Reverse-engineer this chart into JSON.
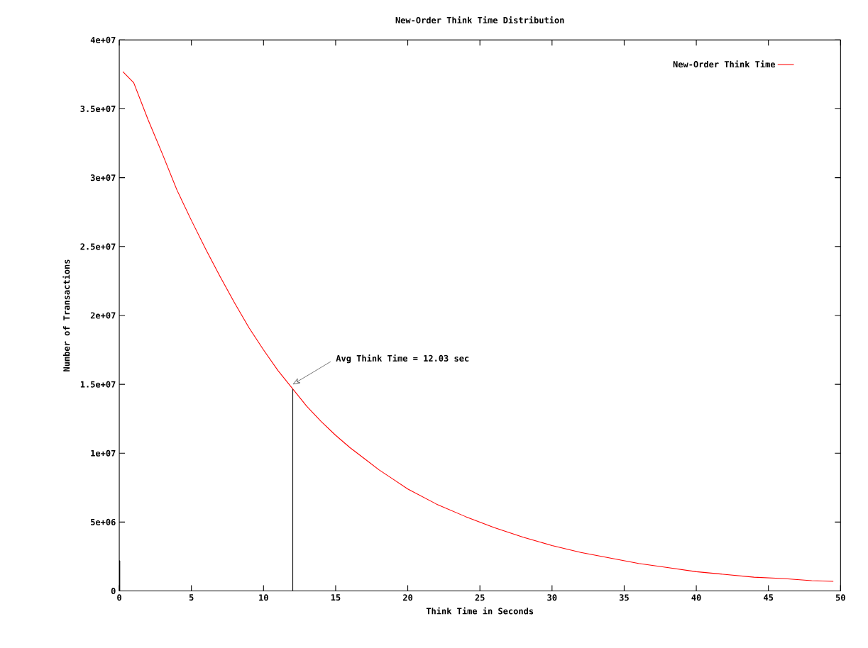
{
  "chart_data": {
    "type": "line",
    "title": "New-Order Think Time Distribution",
    "xlabel": "Think Time in Seconds",
    "ylabel": "Number of Transactions",
    "xlim": [
      0,
      50
    ],
    "ylim": [
      0,
      40000000
    ],
    "xticks": [
      0,
      5,
      10,
      15,
      20,
      25,
      30,
      35,
      40,
      45,
      50
    ],
    "yticks": [
      {
        "value": 0,
        "label": "0"
      },
      {
        "value": 5000000,
        "label": "5e+06"
      },
      {
        "value": 10000000,
        "label": "1e+07"
      },
      {
        "value": 15000000,
        "label": "1.5e+07"
      },
      {
        "value": 20000000,
        "label": "2e+07"
      },
      {
        "value": 25000000,
        "label": "2.5e+07"
      },
      {
        "value": 30000000,
        "label": "3e+07"
      },
      {
        "value": 35000000,
        "label": "3.5e+07"
      },
      {
        "value": 40000000,
        "label": "4e+07"
      }
    ],
    "grid": false,
    "legend": "top right",
    "marker": "none",
    "line_style": "solid",
    "series": [
      {
        "name": "New-Order Think Time",
        "color": "#ff0000",
        "x": [
          0.25,
          1,
          2,
          3,
          4,
          5,
          6,
          7,
          8,
          9,
          10,
          11,
          12,
          13,
          14,
          15,
          16,
          17,
          18,
          19,
          20,
          22,
          24,
          26,
          28,
          30,
          32,
          34,
          36,
          38,
          40,
          42,
          44,
          46,
          48,
          49.5
        ],
        "values": [
          37700000,
          36900000,
          34200000,
          31700000,
          29100000,
          26900000,
          24800000,
          22800000,
          20900000,
          19100000,
          17500000,
          16000000,
          14700000,
          13400000,
          12300000,
          11300000,
          10400000,
          9600000,
          8800000,
          8100000,
          7400000,
          6300000,
          5400000,
          4600000,
          3900000,
          3300000,
          2800000,
          2400000,
          2000000,
          1700000,
          1400000,
          1200000,
          1000000,
          900000,
          750000,
          700000
        ]
      },
      {
        "color": "#000000",
        "type": "bar",
        "x": [
          0
        ],
        "values": [
          2200000
        ]
      }
    ],
    "ref_lines": [
      {
        "axis": "x",
        "value": 12.03,
        "color": "#000000"
      }
    ],
    "annotations": [
      {
        "text": "Avg Think Time = 12.03 sec",
        "x": 12.03,
        "y": 15000000
      }
    ]
  }
}
